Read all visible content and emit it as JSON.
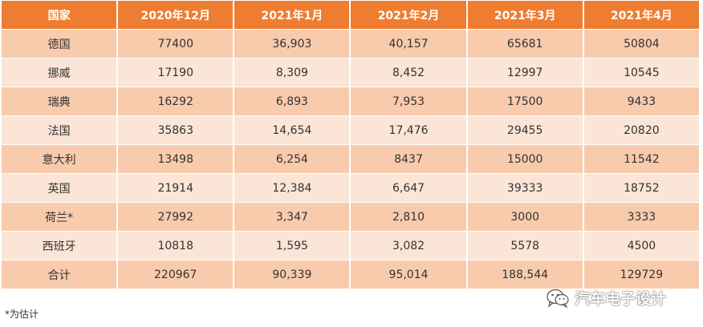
{
  "table": {
    "headers": [
      "国家",
      "2020年12月",
      "2021年1月",
      "2021年2月",
      "2021年3月",
      "2021年4月"
    ],
    "rows": [
      [
        "德国",
        "77400",
        "36,903",
        "40,157",
        "65681",
        "50804"
      ],
      [
        "挪威",
        "17190",
        "8,309",
        "8,452",
        "12997",
        "10545"
      ],
      [
        "瑞典",
        "16292",
        "6,893",
        "7,953",
        "17500",
        "9433"
      ],
      [
        "法国",
        "35863",
        "14,654",
        "17,476",
        "29455",
        "20820"
      ],
      [
        "意大利",
        "13498",
        "6,254",
        "8437",
        "15000",
        "11542"
      ],
      [
        "英国",
        "21914",
        "12,384",
        "6,647",
        "39333",
        "18752"
      ],
      [
        "荷兰*",
        "27992",
        "3,347",
        "2,810",
        "3000",
        "3333"
      ],
      [
        "西班牙",
        "10818",
        "1,595",
        "3,082",
        "5578",
        "4500"
      ],
      [
        "合计",
        "220967",
        "90,339",
        "95,014",
        "188,544",
        "129729"
      ]
    ]
  },
  "footnote": "*为估计",
  "watermark": {
    "text": "汽车电子设计",
    "icon": "wechat-icon"
  },
  "colors": {
    "header_bg": "#ee7d31",
    "row_odd_bg": "#f8cbad",
    "row_even_bg": "#fbe5d6"
  }
}
